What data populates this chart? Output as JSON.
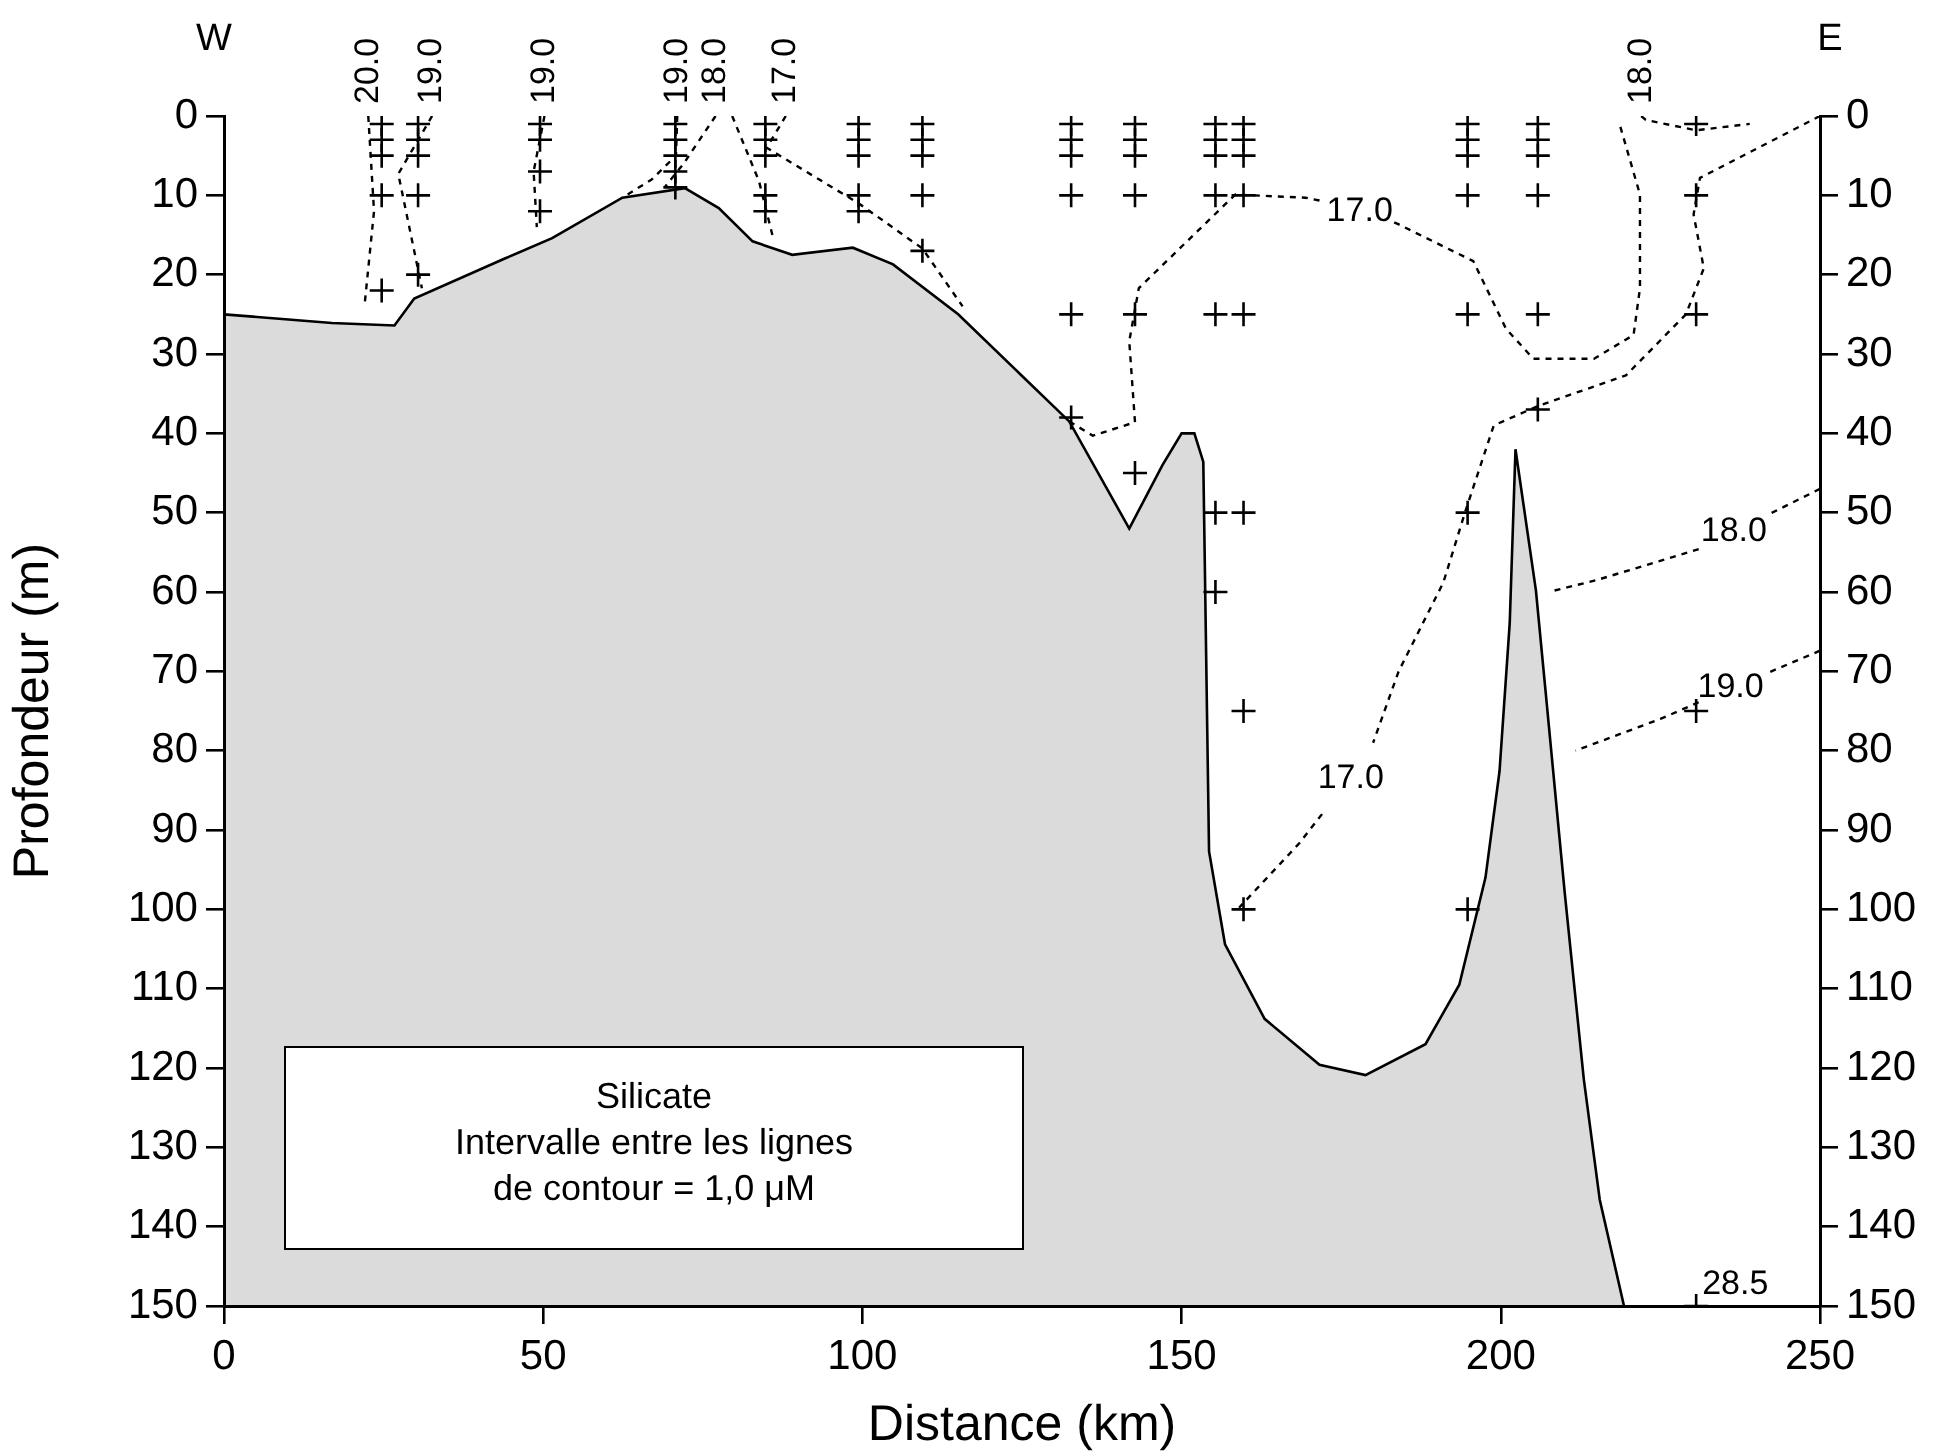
{
  "chart_data": {
    "type": "line",
    "title": "Silicate",
    "subtitle": "Intervalle entre les lignes\nde contour = 1,0 μM",
    "xlabel": "Distance (km)",
    "ylabel": "Profondeur (m)",
    "xlim": [
      0,
      250
    ],
    "xticks": [
      0,
      50,
      100,
      150,
      200,
      250
    ],
    "ylim": [
      150,
      0
    ],
    "yticks": [
      0,
      10,
      20,
      30,
      40,
      50,
      60,
      70,
      80,
      90,
      100,
      110,
      120,
      130,
      140,
      150
    ],
    "y2lim": [
      150,
      0
    ],
    "y2ticks": [
      0,
      10,
      20,
      30,
      40,
      50,
      60,
      70,
      80,
      90,
      100,
      110,
      120,
      130,
      140,
      150
    ],
    "grid": false,
    "legend": false,
    "annotations": [
      "W",
      "E",
      {
        "text": "28.5",
        "x": 230.6,
        "y": 150
      }
    ],
    "series": [
      {
        "type": "area",
        "color": "#000000",
        "x": [
          0,
          0,
          16.9,
          26.7,
          29.8,
          43.9,
          51.4,
          62.4,
          72.2,
          77.5,
          82.8,
          89,
          98.5,
          104.8,
          115,
          132.4,
          141.8,
          147,
          150,
          152,
          153.4,
          154.3,
          156.8,
          163,
          171.6,
          178.8,
          188.2,
          193.5,
          197.6,
          199.8,
          201.4,
          202.3,
          205.5,
          207,
          210,
          213,
          215.5,
          219.3
        ],
        "values": [
          150,
          25,
          26.1,
          26.4,
          23,
          18,
          15.4,
          10.3,
          9.1,
          11.6,
          15.8,
          17.5,
          16.6,
          18.7,
          25,
          38.5,
          52,
          44,
          40,
          40,
          43.6,
          92.7,
          104.4,
          113.8,
          119.6,
          120.9,
          117,
          109.5,
          96,
          82.6,
          63.9,
          42,
          59.8,
          72.4,
          97.8,
          121.4,
          136.6,
          150
        ]
      },
      {
        "type": "line",
        "name": "20.0",
        "color": "#000000",
        "line_style": "dashed",
        "x": [
          22.6,
          23.5,
          22
        ],
        "values": [
          0,
          12,
          24
        ]
      },
      {
        "type": "line",
        "name": "19.0",
        "color": "#000000",
        "line_style": "dashed",
        "x": [
          32.6,
          27.3,
          31
        ],
        "values": [
          0,
          7.3,
          21.7
        ]
      },
      {
        "type": "line",
        "name": "19.0",
        "color": "#000000",
        "line_style": "dashed",
        "x": [
          50.2,
          48.5,
          49
        ],
        "values": [
          0,
          7,
          14
        ]
      },
      {
        "type": "line",
        "name": "19.0",
        "color": "#000000",
        "line_style": "dashed",
        "x": [
          71,
          70.8,
          67,
          62.4
        ],
        "values": [
          0,
          5,
          8,
          10.3
        ]
      },
      {
        "type": "line",
        "name": "18.0",
        "color": "#000000",
        "line_style": "dashed",
        "x": [
          77,
          72,
          69
        ],
        "values": [
          0,
          6,
          9
        ]
      },
      {
        "type": "line",
        "color": "#000000",
        "line_style": "dashed",
        "x": [
          79.6,
          83.8,
          85.9
        ],
        "values": [
          0,
          8.2,
          15
        ]
      },
      {
        "type": "line",
        "name": "17.0",
        "color": "#000000",
        "line_style": "dashed",
        "x": [
          88,
          85,
          99.4,
          109.4,
          115.7
        ],
        "values": [
          0,
          4,
          11,
          16.7,
          24
        ]
      },
      {
        "type": "line",
        "name": "17.0",
        "color": "#000000",
        "line_style": "dashed",
        "x": [
          132.4,
          136.1,
          142.7,
          141.8,
          143.3,
          158.4,
          169.4,
          172.5,
          177.9,
          183.3,
          184.1,
          195.7,
          200.8,
          205.1,
          214.6,
          220.8,
          221.8,
          221.8,
          218.6
        ],
        "values": [
          38.5,
          40.3,
          38.6,
          28.4,
          21.7,
          9.9,
          10.3,
          10.8,
          null,
          13.4,
          13.7,
          18.3,
          26.8,
          30.6,
          30.6,
          27.6,
          21.7,
          9.9,
          1
        ]
      },
      {
        "type": "line",
        "name": "18.0",
        "color": "#000000",
        "line_style": "dashed",
        "x": [
          222,
          222.7,
          230.6,
          239
        ],
        "values": [
          0,
          0.5,
          1.8,
          1
        ]
      },
      {
        "type": "line",
        "name": "17.0",
        "color": "#000000",
        "line_style": "dashed",
        "x": [
          250,
          231.2,
          230.2,
          231.8,
          229,
          219.6,
          206,
          198.9,
          194.5,
          191,
          184,
          180,
          176.5,
          172,
          168.4,
          159
        ],
        "values": [
          0,
          7.8,
          12.4,
          19.2,
          25,
          32.7,
          36.5,
          39,
          49.7,
          58.8,
          70,
          79,
          null,
          88,
          91.7,
          99.8
        ]
      },
      {
        "type": "line",
        "name": "18.0",
        "color": "#000000",
        "line_style": "dashed",
        "x": [
          250,
          242,
          236.5,
          231,
          215,
          207.5
        ],
        "values": [
          47,
          50.2,
          null,
          54.6,
          58.5,
          60
        ]
      },
      {
        "type": "line",
        "name": "19.0",
        "color": "#000000",
        "line_style": "dashed",
        "x": [
          250,
          241.5,
          236,
          231,
          225,
          211.7
        ],
        "values": [
          67.4,
          70.3,
          null,
          73.9,
          76,
          80
        ]
      },
      {
        "type": "scatter",
        "color": "#000000",
        "marker": "cross",
        "x": [
          24.7,
          24.7,
          24.7,
          24.7,
          24.7,
          30.4,
          30.4,
          30.4,
          30.4,
          30.4,
          49.5,
          49.5,
          49.5,
          49.5,
          70.7,
          70.7,
          70.7,
          70.7,
          70.7,
          84.8,
          84.8,
          84.8,
          84.8,
          84.8,
          99.4,
          99.4,
          99.4,
          99.4,
          99.4,
          109.4,
          109.4,
          109.4,
          109.4,
          109.4,
          132.7,
          132.7,
          132.7,
          132.7,
          132.7,
          132.7,
          142.7,
          142.7,
          142.7,
          142.7,
          142.7,
          142.7,
          155.3,
          155.3,
          155.3,
          155.3,
          155.3,
          155.3,
          155.3,
          159.7,
          159.7,
          159.7,
          159.7,
          159.7,
          159.7,
          159.7,
          159.7,
          194.8,
          194.8,
          194.8,
          194.8,
          194.8,
          194.8,
          194.8,
          205.8,
          205.8,
          205.8,
          205.8,
          205.8,
          205.8,
          230.6,
          230.6,
          230.6,
          230.6,
          230.6
        ],
        "values": [
          1,
          3,
          5,
          10,
          22,
          1,
          3,
          5,
          10,
          20,
          1,
          3,
          7,
          12,
          1,
          3,
          5,
          7,
          9,
          1,
          3,
          5,
          10,
          12,
          1,
          3,
          5,
          10,
          12,
          1,
          3,
          5,
          10,
          17,
          1,
          3,
          5,
          10,
          25,
          38,
          1,
          3,
          5,
          10,
          25,
          45,
          1,
          3,
          5,
          10,
          25,
          50,
          60,
          1,
          3,
          5,
          10,
          25,
          50,
          75,
          100,
          1,
          3,
          5,
          10,
          25,
          50,
          100,
          1,
          3,
          5,
          10,
          25,
          37,
          1,
          10,
          25,
          75,
          150
        ]
      }
    ]
  }
}
